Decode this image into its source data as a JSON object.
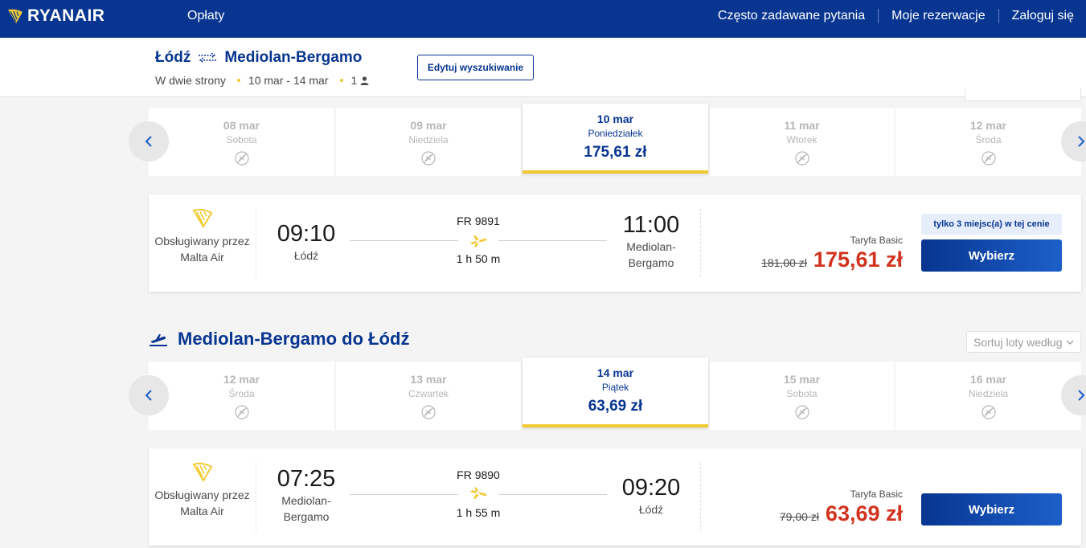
{
  "nav": {
    "brand": "RYANAIR",
    "fees": "Opłaty",
    "faq": "Często zadawane pytania",
    "bookings": "Moje rezerwacje",
    "login": "Zaloguj się"
  },
  "trip": {
    "origin": "Łódź",
    "destination": "Mediolan-Bergamo",
    "trip_type": "W dwie strony",
    "dates": "10 mar - 14 mar",
    "passengers": "1",
    "edit_label": "Edytuj wyszukiwanie"
  },
  "outbound": {
    "dates": [
      {
        "date": "08 mar",
        "weekday": "Sobota"
      },
      {
        "date": "09 mar",
        "weekday": "Niedziela"
      },
      {
        "date": "10 mar",
        "weekday": "Poniedziałek",
        "price": "175,61 zł"
      },
      {
        "date": "11 mar",
        "weekday": "Wtorek"
      },
      {
        "date": "12 mar",
        "weekday": "Środa"
      }
    ],
    "flight": {
      "operator": "Obsługiwany przez Malta Air",
      "dep_time": "09:10",
      "dep_city": "Łódź",
      "flight_no": "FR 9891",
      "duration": "1 h 50 m",
      "arr_time": "11:00",
      "arr_city": "Mediolan-Bergamo",
      "fare_name": "Taryfa Basic",
      "old_price": "181,00 zł",
      "price": "175,61 zł",
      "seats_badge": "tylko 3 miejsc(a) w tej cenie",
      "select_label": "Wybierz"
    }
  },
  "inbound": {
    "title": "Mediolan-Bergamo do Łódź",
    "sort_label": "Sortuj loty według",
    "dates": [
      {
        "date": "12 mar",
        "weekday": "Środa"
      },
      {
        "date": "13 mar",
        "weekday": "Czwartek"
      },
      {
        "date": "14 mar",
        "weekday": "Piątek",
        "price": "63,69 zł"
      },
      {
        "date": "15 mar",
        "weekday": "Sobota"
      },
      {
        "date": "16 mar",
        "weekday": "Niedziela"
      }
    ],
    "flight": {
      "operator": "Obsługiwany przez Malta Air",
      "dep_time": "07:25",
      "dep_city": "Mediolan-Bergamo",
      "flight_no": "FR 9890",
      "duration": "1 h 55 m",
      "arr_time": "09:20",
      "arr_city": "Łódź",
      "fare_name": "Taryfa Basic",
      "old_price": "79,00 zł",
      "price": "63,69 zł",
      "select_label": "Wybierz"
    }
  },
  "colors": {
    "brand_blue": "#073590",
    "accent_yellow": "#f1c933",
    "price_red": "#d1331f"
  }
}
